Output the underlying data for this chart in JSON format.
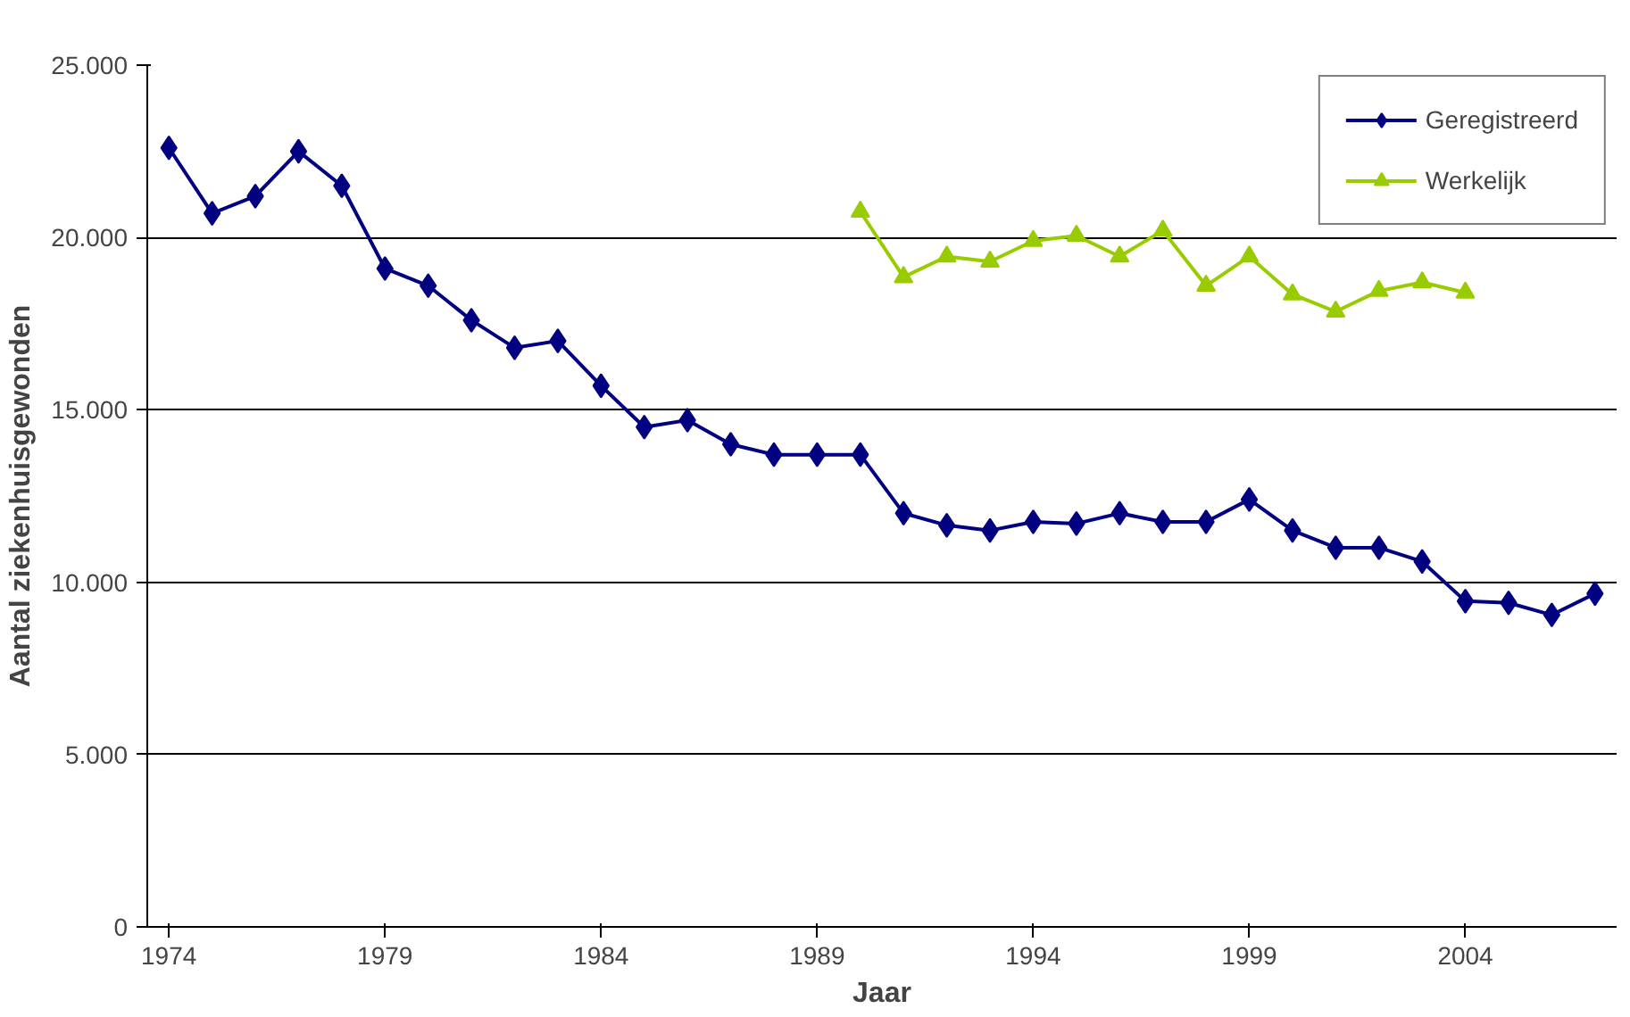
{
  "chart_data": {
    "type": "line",
    "xlabel": "Jaar",
    "ylabel": "Aantal ziekenhuisgewonden",
    "x": [
      1974,
      1975,
      1976,
      1977,
      1978,
      1979,
      1980,
      1981,
      1982,
      1983,
      1984,
      1985,
      1986,
      1987,
      1988,
      1989,
      1990,
      1991,
      1992,
      1993,
      1994,
      1995,
      1996,
      1997,
      1998,
      1999,
      2000,
      2001,
      2002,
      2003,
      2004,
      2005,
      2006,
      2007
    ],
    "series": [
      {
        "name": "Geregistreerd",
        "color": "#000080",
        "marker": "diamond",
        "values": [
          22600,
          20700,
          21200,
          22500,
          21500,
          19100,
          18600,
          17600,
          16800,
          17000,
          15700,
          14500,
          14700,
          14000,
          13700,
          13700,
          13700,
          12000,
          11650,
          11500,
          11750,
          11700,
          12000,
          11750,
          11750,
          12400,
          11500,
          11000,
          11000,
          10600,
          9450,
          9400,
          9050,
          9670
        ]
      },
      {
        "name": "Werkelijk",
        "color": "#99cc00",
        "marker": "triangle",
        "x": [
          1990,
          1991,
          1992,
          1993,
          1994,
          1995,
          1996,
          1997,
          1998,
          1999,
          2000,
          2001,
          2002,
          2003,
          2004
        ],
        "values": [
          20750,
          18850,
          19450,
          19300,
          19900,
          20050,
          19450,
          20200,
          18600,
          19450,
          18350,
          17850,
          18450,
          18700,
          18400
        ]
      }
    ],
    "xlim": [
      1973.5,
      2007.5
    ],
    "xticks": [
      1974,
      1979,
      1984,
      1989,
      1994,
      1999,
      2004
    ],
    "ylim": [
      0,
      25000
    ],
    "yticks": [
      0,
      {
        "value": 5000,
        "label": "5.000"
      },
      {
        "value": 10000,
        "label": "10.000"
      },
      {
        "value": 15000,
        "label": "15.000"
      },
      {
        "value": 20000,
        "label": "20.000"
      },
      {
        "value": 25000,
        "label": "25.000"
      }
    ],
    "grid": "y",
    "legend": "top right",
    "line_style": "solid"
  }
}
